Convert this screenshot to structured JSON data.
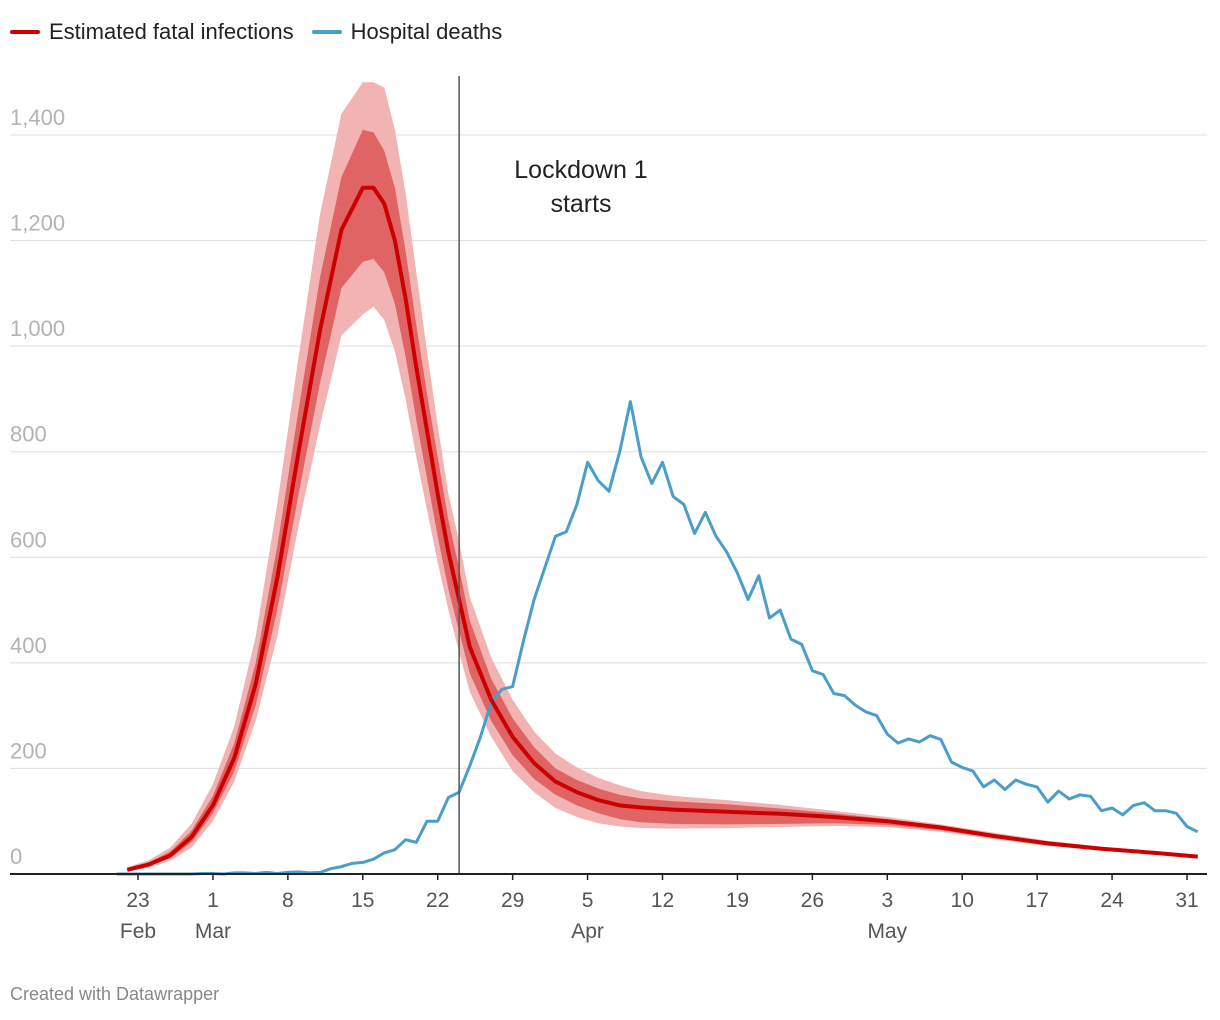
{
  "legend": [
    {
      "label": "Estimated fatal infections",
      "color": "#cc0000"
    },
    {
      "label": "Hospital deaths",
      "color": "#4a9ec8"
    }
  ],
  "credit": "Created with Datawrapper",
  "chart_data": {
    "type": "line",
    "title": "",
    "xlabel": "",
    "ylabel": "",
    "ylim": [
      0,
      1500
    ],
    "yticks": [
      {
        "value": 0,
        "label": "0"
      },
      {
        "value": 200,
        "label": "200"
      },
      {
        "value": 400,
        "label": "400"
      },
      {
        "value": 600,
        "label": "600"
      },
      {
        "value": 800,
        "label": "800"
      },
      {
        "value": 1000,
        "label": "1,000"
      },
      {
        "value": 1200,
        "label": "1,200"
      },
      {
        "value": 1400,
        "label": "1,400"
      }
    ],
    "xrange_days": [
      0,
      98
    ],
    "x_note": "x values are days since 23 Feb",
    "xticks": [
      {
        "day": 0,
        "label": "23",
        "sub": "Feb"
      },
      {
        "day": 7,
        "label": "1",
        "sub": "Mar"
      },
      {
        "day": 14,
        "label": "8",
        "sub": ""
      },
      {
        "day": 21,
        "label": "15",
        "sub": ""
      },
      {
        "day": 28,
        "label": "22",
        "sub": ""
      },
      {
        "day": 35,
        "label": "29",
        "sub": ""
      },
      {
        "day": 42,
        "label": "5",
        "sub": "Apr"
      },
      {
        "day": 49,
        "label": "12",
        "sub": ""
      },
      {
        "day": 56,
        "label": "19",
        "sub": ""
      },
      {
        "day": 63,
        "label": "26",
        "sub": ""
      },
      {
        "day": 70,
        "label": "3",
        "sub": "May"
      },
      {
        "day": 77,
        "label": "10",
        "sub": ""
      },
      {
        "day": 84,
        "label": "17",
        "sub": ""
      },
      {
        "day": 91,
        "label": "24",
        "sub": ""
      },
      {
        "day": 98,
        "label": "31",
        "sub": ""
      }
    ],
    "annotation": {
      "day": 30,
      "lines": [
        "Lockdown 1",
        "starts"
      ]
    },
    "series": [
      {
        "name": "Estimated fatal infections",
        "color": "#cc0000",
        "days": [
          -1,
          1,
          3,
          5,
          7,
          9,
          11,
          13,
          15,
          17,
          19,
          21,
          22,
          23,
          24,
          25,
          26,
          27,
          28,
          29,
          30,
          31,
          33,
          35,
          37,
          39,
          41,
          43,
          45,
          47,
          50,
          55,
          60,
          65,
          70,
          75,
          80,
          85,
          90,
          95,
          99
        ],
        "values": [
          8,
          18,
          35,
          70,
          130,
          220,
          360,
          560,
          800,
          1030,
          1220,
          1300,
          1300,
          1270,
          1200,
          1090,
          960,
          840,
          720,
          610,
          520,
          430,
          330,
          260,
          210,
          175,
          155,
          140,
          130,
          126,
          122,
          118,
          114,
          108,
          100,
          88,
          72,
          58,
          48,
          40,
          33
        ],
        "band_inner_low": [
          6,
          15,
          30,
          60,
          115,
          195,
          320,
          500,
          720,
          930,
          1110,
          1160,
          1165,
          1140,
          1080,
          980,
          860,
          750,
          640,
          540,
          460,
          380,
          290,
          225,
          180,
          150,
          130,
          115,
          104,
          98,
          95,
          94,
          95,
          96,
          93,
          83,
          68,
          55,
          46,
          38,
          31
        ],
        "band_inner_high": [
          11,
          22,
          42,
          82,
          148,
          248,
          400,
          620,
          880,
          1130,
          1320,
          1410,
          1405,
          1370,
          1300,
          1180,
          1040,
          910,
          790,
          670,
          580,
          480,
          370,
          295,
          240,
          200,
          178,
          162,
          150,
          143,
          138,
          132,
          124,
          115,
          104,
          91,
          75,
          61,
          50,
          42,
          35
        ],
        "band_outer_low": [
          5,
          12,
          25,
          50,
          100,
          175,
          290,
          450,
          660,
          850,
          1020,
          1060,
          1075,
          1050,
          990,
          900,
          790,
          690,
          590,
          500,
          420,
          345,
          260,
          195,
          155,
          125,
          108,
          96,
          90,
          87,
          86,
          87,
          89,
          91,
          89,
          80,
          66,
          53,
          44,
          37,
          30
        ],
        "band_outer_high": [
          13,
          26,
          50,
          95,
          170,
          280,
          450,
          700,
          980,
          1250,
          1440,
          1500,
          1500,
          1490,
          1410,
          1290,
          1140,
          990,
          850,
          720,
          630,
          525,
          410,
          330,
          270,
          228,
          202,
          182,
          168,
          157,
          148,
          140,
          131,
          120,
          108,
          94,
          78,
          63,
          52,
          43,
          36
        ]
      },
      {
        "name": "Hospital deaths",
        "color": "#4a9ec8",
        "days": [
          -2,
          -1,
          0,
          1,
          2,
          3,
          4,
          5,
          6,
          7,
          8,
          9,
          10,
          11,
          12,
          13,
          14,
          15,
          16,
          17,
          18,
          19,
          20,
          21,
          22,
          23,
          24,
          25,
          26,
          27,
          28,
          29,
          30,
          31,
          32,
          33,
          34,
          35,
          36,
          37,
          38,
          39,
          40,
          41,
          42,
          43,
          44,
          45,
          46,
          47,
          48,
          49,
          50,
          51,
          52,
          53,
          54,
          55,
          56,
          57,
          58,
          59,
          60,
          61,
          62,
          63,
          64,
          65,
          66,
          67,
          68,
          69,
          70,
          71,
          72,
          73,
          74,
          75,
          76,
          77,
          78,
          79,
          80,
          81,
          82,
          83,
          84,
          85,
          86,
          87,
          88,
          89,
          90,
          91,
          92,
          93,
          94,
          95,
          96,
          97,
          98,
          99
        ],
        "values": [
          0,
          0,
          0,
          0,
          0,
          0,
          0,
          0,
          1,
          1,
          0,
          2,
          2,
          1,
          3,
          1,
          3,
          4,
          2,
          3,
          10,
          14,
          20,
          22,
          28,
          40,
          46,
          65,
          60,
          100,
          100,
          145,
          155,
          205,
          260,
          325,
          350,
          355,
          440,
          520,
          580,
          640,
          648,
          700,
          780,
          745,
          725,
          800,
          895,
          790,
          740,
          780,
          715,
          700,
          645,
          685,
          640,
          610,
          570,
          520,
          565,
          485,
          500,
          445,
          435,
          385,
          378,
          342,
          338,
          320,
          307,
          300,
          265,
          248,
          256,
          250,
          262,
          255,
          212,
          202,
          195,
          165,
          178,
          160,
          178,
          170,
          165,
          136,
          157,
          142,
          150,
          147,
          120,
          125,
          112,
          130,
          135,
          120,
          120,
          115,
          90,
          80
        ]
      }
    ]
  }
}
